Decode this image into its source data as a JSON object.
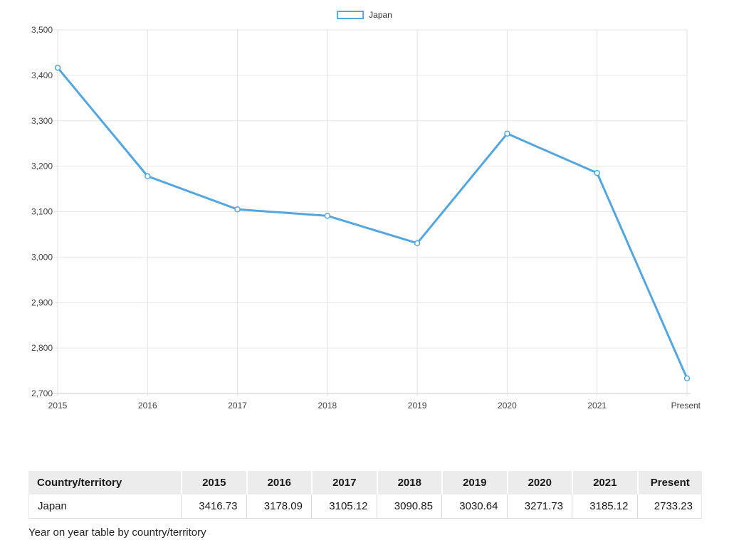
{
  "chart_data": {
    "type": "line",
    "title": "",
    "categories": [
      "2015",
      "2016",
      "2017",
      "2018",
      "2019",
      "2020",
      "2021",
      "Present"
    ],
    "series": [
      {
        "name": "Japan",
        "values": [
          3416.73,
          3178.09,
          3105.12,
          3090.85,
          3030.64,
          3271.73,
          3185.12,
          2733.23
        ],
        "color": "#54a6de"
      }
    ],
    "xlabel": "",
    "ylabel": "",
    "ylim": [
      2700,
      3500
    ],
    "ytick_step": 100,
    "grid": true,
    "legend_position": "top-center",
    "marker": "open-circle",
    "colors": {
      "gridline": "#e6e6e6",
      "axis_line": "#c8c8c8",
      "axis_text": "#414141"
    }
  },
  "table": {
    "headers": [
      "Country/territory",
      "2015",
      "2016",
      "2017",
      "2018",
      "2019",
      "2020",
      "2021",
      "Present"
    ],
    "rows": [
      {
        "country": "Japan",
        "values": [
          "3416.73",
          "3178.09",
          "3105.12",
          "3090.85",
          "3030.64",
          "3271.73",
          "3185.12",
          "2733.23"
        ]
      }
    ]
  },
  "caption": "Year on year table by country/territory"
}
